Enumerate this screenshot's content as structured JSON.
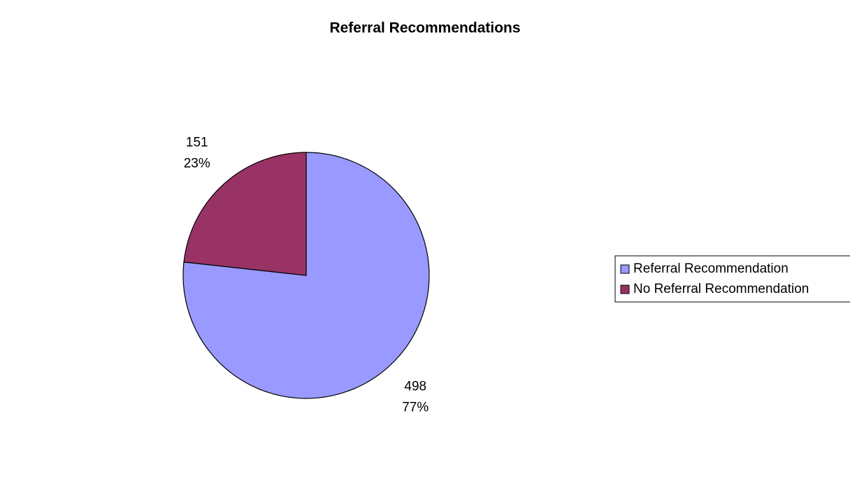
{
  "chart_data": {
    "type": "pie",
    "title": "Referral Recommendations",
    "categories": [
      "Referral Recommendation",
      "No Referral Recommendation"
    ],
    "values": [
      498,
      151
    ],
    "percent_labels": [
      "77%",
      "23%"
    ],
    "colors": [
      "#9999ff",
      "#993366"
    ],
    "legend": "right"
  }
}
